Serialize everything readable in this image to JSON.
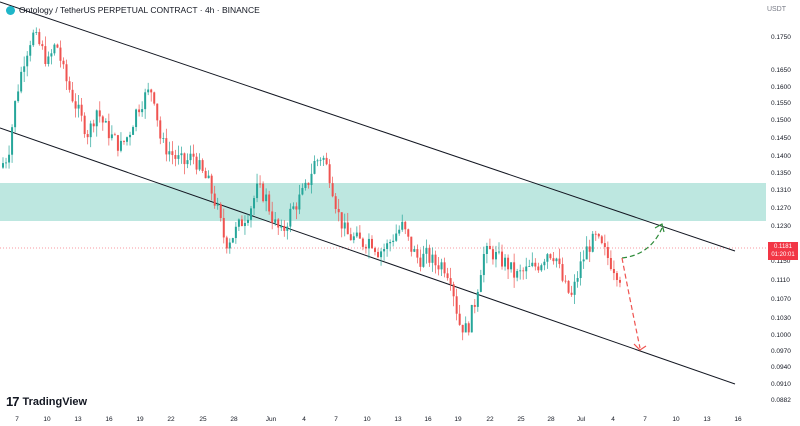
{
  "header": {
    "title": "Ontology / TetherUS PERPETUAL CONTRACT · 4h · BINANCE",
    "logo_icon": "ontology-logo-icon"
  },
  "currency_label": "USDT",
  "watermark": "TradingView",
  "price_badge": {
    "price": "0.1181",
    "countdown": "01:20:01",
    "color": "#f23645"
  },
  "colors": {
    "up": "#26a69a",
    "down": "#ef5350",
    "zone": "#b2e3da",
    "projection_up": "#2e8b3a",
    "projection_down": "#ef5350"
  },
  "chart_data": {
    "type": "candlestick",
    "x_tick_labels": [
      "7",
      "10",
      "13",
      "16",
      "19",
      "22",
      "25",
      "28",
      "Jun",
      "4",
      "7",
      "10",
      "13",
      "16",
      "19",
      "22",
      "25",
      "28",
      "Jul",
      "4",
      "7",
      "10",
      "13",
      "16"
    ],
    "y_tick_labels": [
      "0.1750",
      "0.1650",
      "0.1600",
      "0.1550",
      "0.1500",
      "0.1450",
      "0.1400",
      "0.1350",
      "0.1310",
      "0.1270",
      "0.1230",
      "0.1150",
      "0.1110",
      "0.1070",
      "0.1030",
      "0.1000",
      "0.0970",
      "0.0940",
      "0.0910",
      "0.0882"
    ],
    "ylim": [
      0.088,
      0.18
    ],
    "support_zone": [
      0.124,
      0.132
    ],
    "current_price": 0.1181,
    "close_path": [
      0.144,
      0.147,
      0.161,
      0.17,
      0.176,
      0.173,
      0.169,
      0.174,
      0.166,
      0.161,
      0.156,
      0.152,
      0.158,
      0.154,
      0.151,
      0.149,
      0.152,
      0.158,
      0.161,
      0.163,
      0.15,
      0.148,
      0.146,
      0.145,
      0.147,
      0.143,
      0.14,
      0.134,
      0.126,
      0.128,
      0.131,
      0.134,
      0.139,
      0.137,
      0.131,
      0.128,
      0.133,
      0.136,
      0.139,
      0.145,
      0.147,
      0.142,
      0.133,
      0.128,
      0.127,
      0.126,
      0.127,
      0.124,
      0.125,
      0.128,
      0.13,
      0.125,
      0.122,
      0.123,
      0.121,
      0.121,
      0.118,
      0.107,
      0.105,
      0.112,
      0.123,
      0.124,
      0.122,
      0.121,
      0.118,
      0.119,
      0.12,
      0.121,
      0.124,
      0.123,
      0.116,
      0.113,
      0.12,
      0.125,
      0.127,
      0.124,
      0.121,
      0.118
    ],
    "channel": {
      "upper": [
        {
          "x": "7",
          "y": 0.1845
        },
        {
          "x": "16",
          "y": 0.1181
        }
      ],
      "lower": [
        {
          "x": "7",
          "y": 0.1495
        },
        {
          "x": "16",
          "y": 0.0915
        }
      ]
    },
    "projection_up": [
      {
        "x": "4",
        "y": 0.1181
      },
      {
        "x": "7",
        "y": 0.1205
      },
      {
        "x": "7",
        "y": 0.1245
      }
    ],
    "projection_down": [
      {
        "x": "4",
        "y": 0.1181
      },
      {
        "x": "7",
        "y": 0.107
      },
      {
        "x": "7",
        "y": 0.0975
      }
    ]
  }
}
